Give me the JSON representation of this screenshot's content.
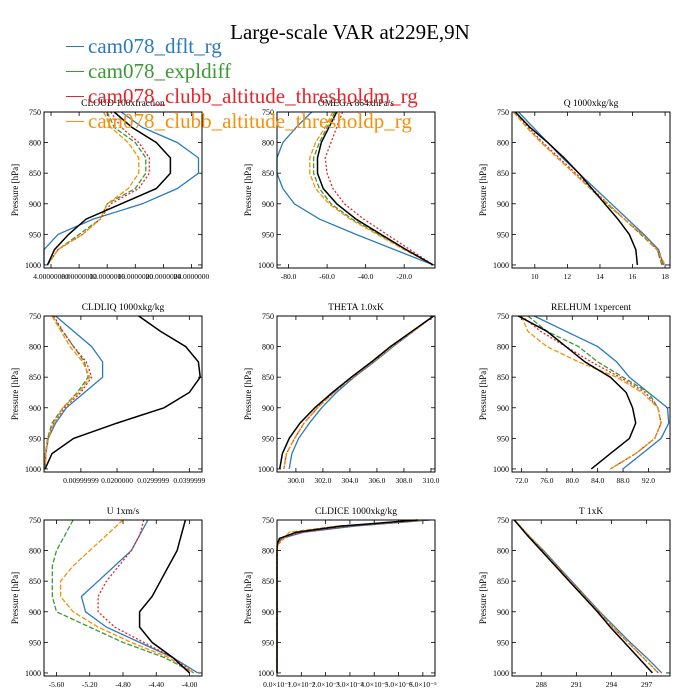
{
  "title": "Large-scale VAR at229E,9N",
  "legend": [
    {
      "label": "cam078_dflt_rg",
      "color": "#2b7bba"
    },
    {
      "label": "cam078_expldiff",
      "color": "#3c9a34"
    },
    {
      "label": "cam078_clubb_altitude_thresholdm_rg",
      "color": "#e3262b"
    },
    {
      "label": "cam078_clubb_altitude_thresholdp_rg",
      "color": "#f7900a"
    }
  ],
  "chart_data": [
    {
      "type": "line",
      "title": "CLOUD  100xfraction",
      "ylabel": "Pressure [hPa]",
      "ylim": [
        750,
        1005
      ],
      "yticks": [
        750,
        800,
        850,
        900,
        950,
        1000
      ],
      "xlim": [
        3.0,
        25.5
      ],
      "xticks": [
        4,
        8,
        12,
        16,
        20,
        24
      ],
      "xtick_labels": [
        "4.00000000",
        "8.00000000",
        "12.0000000",
        "16.0000000",
        "20.0000000",
        "24.0000000"
      ],
      "y": [
        750,
        775,
        800,
        825,
        850,
        875,
        900,
        925,
        950,
        975,
        1000
      ],
      "series": [
        {
          "name": "cam078_dflt_rg",
          "values": [
            14,
            17,
            22,
            25,
            25,
            22,
            17,
            10,
            5,
            3,
            3
          ]
        },
        {
          "name": "cam078_expldiff",
          "values": [
            12,
            13,
            16,
            17.5,
            17.5,
            16,
            12,
            11,
            8,
            5,
            3.5
          ]
        },
        {
          "name": "cam078_clubb_altitude_thresholdm_rg",
          "values": [
            12.5,
            14,
            16.5,
            18,
            18,
            16.5,
            12.5,
            11,
            8.5,
            5,
            3.5
          ]
        },
        {
          "name": "cam078_clubb_altitude_thresholdp_rg",
          "values": [
            11.5,
            12.5,
            15,
            16.5,
            16.5,
            15,
            12,
            11,
            8.5,
            5,
            3.5
          ]
        },
        {
          "name": "",
          "values": [
            13,
            15.5,
            19,
            21,
            21,
            19,
            14,
            9,
            6.5,
            4.5,
            3.5
          ]
        }
      ]
    },
    {
      "type": "line",
      "title": "OMEGA  864xhPa/s",
      "ylabel": "Pressure [hPa]",
      "ylim": [
        750,
        1005
      ],
      "yticks": [
        750,
        800,
        850,
        900,
        950,
        1000
      ],
      "xlim": [
        -86,
        -4
      ],
      "xticks": [
        -80,
        -60,
        -40,
        -20
      ],
      "xtick_labels": [
        "-80.0",
        "-60.0",
        "-40.0",
        "-20.0"
      ],
      "y": [
        750,
        775,
        800,
        825,
        850,
        875,
        900,
        925,
        950,
        975,
        1000
      ],
      "series": [
        {
          "name": "cam078_dflt_rg",
          "values": [
            -68,
            -76,
            -83,
            -86,
            -86,
            -83,
            -77,
            -64,
            -45,
            -25,
            -5
          ]
        },
        {
          "name": "cam078_expldiff",
          "values": [
            -56,
            -60,
            -64,
            -67,
            -67,
            -64,
            -58,
            -47,
            -33,
            -19,
            -5
          ]
        },
        {
          "name": "cam078_clubb_altitude_thresholdm_rg",
          "values": [
            -52,
            -55,
            -58,
            -61,
            -60,
            -57,
            -51,
            -41,
            -29,
            -17,
            -5
          ]
        },
        {
          "name": "cam078_clubb_altitude_thresholdp_rg",
          "values": [
            -57,
            -61,
            -66,
            -69,
            -69,
            -66,
            -59,
            -48,
            -34,
            -20,
            -5
          ]
        },
        {
          "name": "",
          "values": [
            -55,
            -59,
            -63,
            -65,
            -65,
            -62,
            -55,
            -45,
            -32,
            -19,
            -5
          ]
        }
      ]
    },
    {
      "type": "line",
      "title": "Q  1000xkg/kg",
      "ylabel": "Pressure [hPa]",
      "ylim": [
        750,
        1005
      ],
      "yticks": [
        750,
        800,
        850,
        900,
        950,
        1000
      ],
      "xlim": [
        8.6,
        18.3
      ],
      "xticks": [
        10,
        12,
        14,
        16,
        18
      ],
      "xtick_labels": [
        "10",
        "12",
        "14",
        "16",
        "18"
      ],
      "y": [
        750,
        775,
        800,
        825,
        850,
        875,
        900,
        925,
        950,
        975,
        1000
      ],
      "series": [
        {
          "name": "cam078_dflt_rg",
          "values": [
            9,
            9.9,
            10.8,
            11.7,
            12.7,
            13.7,
            14.7,
            15.7,
            16.7,
            17.6,
            17.9
          ]
        },
        {
          "name": "cam078_expldiff",
          "values": [
            8.7,
            9.5,
            10.4,
            11.4,
            12.4,
            13.4,
            14.4,
            15.5,
            16.5,
            17.5,
            17.8
          ]
        },
        {
          "name": "cam078_clubb_altitude_thresholdm_rg",
          "values": [
            8.8,
            9.6,
            10.5,
            11.5,
            12.5,
            13.5,
            14.5,
            15.5,
            16.6,
            17.5,
            17.9
          ]
        },
        {
          "name": "cam078_clubb_altitude_thresholdp_rg",
          "values": [
            8.7,
            9.5,
            10.4,
            11.4,
            12.4,
            13.4,
            14.5,
            15.5,
            16.6,
            17.5,
            18
          ]
        },
        {
          "name": "",
          "values": [
            8.8,
            9.7,
            10.8,
            11.8,
            12.7,
            13.5,
            14.3,
            15.1,
            15.8,
            16.2,
            16.3
          ]
        }
      ]
    },
    {
      "type": "line",
      "title": "CLDLIQ  1000xkg/kg",
      "ylabel": "Pressure [hPa]",
      "ylim": [
        750,
        1005
      ],
      "yticks": [
        750,
        800,
        850,
        900,
        950,
        1000
      ],
      "xlim": [
        -0.0002,
        0.0435
      ],
      "xticks": [
        0.01,
        0.02,
        0.03,
        0.04
      ],
      "xtick_labels": [
        "0.00999999",
        "0.0200000",
        "0.0299999",
        "0.0399999"
      ],
      "y": [
        750,
        775,
        800,
        825,
        850,
        875,
        900,
        925,
        950,
        975,
        1000
      ],
      "series": [
        {
          "name": "cam078_dflt_rg",
          "values": [
            0.003,
            0.008,
            0.013,
            0.016,
            0.016,
            0.011,
            0.006,
            0.003,
            0.001,
            0.0003,
            0.0001
          ]
        },
        {
          "name": "cam078_expldiff",
          "values": [
            0.002,
            0.005,
            0.008,
            0.011,
            0.012,
            0.009,
            0.005,
            0.002,
            0.0008,
            0.0002,
            0.0001
          ]
        },
        {
          "name": "cam078_clubb_altitude_thresholdm_rg",
          "values": [
            0.0025,
            0.005,
            0.008,
            0.0115,
            0.013,
            0.01,
            0.0055,
            0.0025,
            0.001,
            0.0003,
            0.0001
          ]
        },
        {
          "name": "cam078_clubb_altitude_thresholdp_rg",
          "values": [
            0.002,
            0.0045,
            0.007,
            0.0105,
            0.0125,
            0.0095,
            0.005,
            0.0025,
            0.001,
            0.0003,
            0.0001
          ]
        },
        {
          "name": "",
          "values": [
            0.026,
            0.032,
            0.039,
            0.0425,
            0.043,
            0.04,
            0.033,
            0.02,
            0.008,
            0.002,
            0.0001
          ]
        }
      ]
    },
    {
      "type": "line",
      "title": "THETA  1.0xK",
      "ylabel": "Pressure [hPa]",
      "ylim": [
        750,
        1005
      ],
      "yticks": [
        750,
        800,
        850,
        900,
        950,
        1000
      ],
      "xlim": [
        298.6,
        310.3
      ],
      "xticks": [
        300,
        302,
        304,
        306,
        308,
        310
      ],
      "xtick_labels": [
        "300.0",
        "302.0",
        "304.0",
        "306.0",
        "308.0",
        "310.0"
      ],
      "y": [
        750,
        775,
        800,
        825,
        850,
        875,
        900,
        925,
        950,
        975,
        1000
      ],
      "series": [
        {
          "name": "cam078_dflt_rg",
          "values": [
            310.2,
            308.7,
            307.2,
            305.8,
            304.3,
            303,
            301.9,
            301,
            300.2,
            299.7,
            299.5
          ]
        },
        {
          "name": "cam078_expldiff",
          "values": [
            310.2,
            308.6,
            307.1,
            305.7,
            304.1,
            302.8,
            301.6,
            300.6,
            299.9,
            299.3,
            299.1
          ]
        },
        {
          "name": "cam078_clubb_altitude_thresholdm_rg",
          "values": [
            310.2,
            308.6,
            307.1,
            305.7,
            304.2,
            302.8,
            301.6,
            300.6,
            299.9,
            299.3,
            299.1
          ]
        },
        {
          "name": "cam078_clubb_altitude_thresholdp_rg",
          "values": [
            310.2,
            308.7,
            307.1,
            305.7,
            304.2,
            302.8,
            301.6,
            300.6,
            299.9,
            299.3,
            299.1
          ]
        },
        {
          "name": "",
          "values": [
            310.2,
            308.6,
            307,
            305.6,
            304.1,
            302.7,
            301.4,
            300.3,
            299.5,
            299,
            298.8
          ]
        }
      ]
    },
    {
      "type": "line",
      "title": "RELHUM  1xpercent",
      "ylabel": "Pressure [hPa]",
      "ylim": [
        750,
        1005
      ],
      "yticks": [
        750,
        800,
        850,
        900,
        950,
        1000
      ],
      "xlim": [
        70.5,
        95.4
      ],
      "xticks": [
        72,
        76,
        80,
        84,
        88,
        92
      ],
      "xtick_labels": [
        "72.0",
        "76.0",
        "80.0",
        "84.0",
        "88.0",
        "92.0"
      ],
      "y": [
        750,
        775,
        800,
        825,
        850,
        875,
        900,
        925,
        950,
        975,
        1000
      ],
      "series": [
        {
          "name": "cam078_dflt_rg",
          "values": [
            74,
            79,
            84,
            87,
            89,
            92,
            95,
            95.2,
            94,
            91,
            88
          ]
        },
        {
          "name": "cam078_expldiff",
          "values": [
            73,
            76,
            81,
            84,
            88,
            92,
            93.5,
            94,
            93,
            90,
            86
          ]
        },
        {
          "name": "cam078_clubb_altitude_thresholdm_rg",
          "values": [
            72,
            75,
            79,
            83,
            87.5,
            91.5,
            93.5,
            94,
            93,
            90,
            86
          ]
        },
        {
          "name": "cam078_clubb_altitude_thresholdp_rg",
          "values": [
            72,
            73,
            76,
            81,
            87,
            91,
            93.5,
            94,
            93,
            90,
            86
          ]
        },
        {
          "name": "",
          "values": [
            71.5,
            76,
            79,
            82,
            86,
            88.5,
            89.5,
            90,
            89,
            86,
            83
          ]
        }
      ]
    },
    {
      "type": "line",
      "title": "U  1xm/s",
      "ylabel": "Pressure [hPa]",
      "ylim": [
        750,
        1005
      ],
      "yticks": [
        750,
        800,
        850,
        900,
        950,
        1000
      ],
      "xlim": [
        -5.75,
        -3.85
      ],
      "xticks": [
        -5.6,
        -5.2,
        -4.8,
        -4.4,
        -4.0
      ],
      "xtick_labels": [
        "-5.60",
        "-5.20",
        "-4.80",
        "-4.40",
        "-4.00"
      ],
      "y": [
        750,
        775,
        800,
        825,
        850,
        875,
        900,
        925,
        950,
        975,
        1000
      ],
      "series": [
        {
          "name": "cam078_dflt_rg",
          "values": [
            -4.5,
            -4.6,
            -4.7,
            -4.9,
            -5.1,
            -5.3,
            -5.25,
            -5,
            -4.6,
            -4.2,
            -3.9
          ]
        },
        {
          "name": "cam078_expldiff",
          "values": [
            -5.4,
            -5.5,
            -5.6,
            -5.65,
            -5.65,
            -5.65,
            -5.6,
            -5.2,
            -4.8,
            -4.3,
            -3.95
          ]
        },
        {
          "name": "cam078_clubb_altitude_thresholdm_rg",
          "values": [
            -4.55,
            -4.6,
            -4.7,
            -4.85,
            -5,
            -5.1,
            -5.1,
            -4.9,
            -4.55,
            -4.2,
            -3.95
          ]
        },
        {
          "name": "cam078_clubb_altitude_thresholdp_rg",
          "values": [
            -4.8,
            -5,
            -5.2,
            -5.4,
            -5.55,
            -5.55,
            -5.4,
            -5.1,
            -4.7,
            -4.25,
            -3.95
          ]
        },
        {
          "name": "",
          "values": [
            -4.05,
            -4.1,
            -4.15,
            -4.25,
            -4.35,
            -4.45,
            -4.6,
            -4.6,
            -4.45,
            -4.2,
            -4.0
          ]
        }
      ]
    },
    {
      "type": "line",
      "title": "CLDICE  1000xkg/kg",
      "ylabel": "Pressure [hPa]",
      "ylim": [
        750,
        1005
      ],
      "yticks": [
        750,
        800,
        850,
        900,
        950,
        1000
      ],
      "xlim": [
        0,
        6.5
      ],
      "xticks": [
        0,
        1,
        2,
        3,
        4,
        5,
        6
      ],
      "xtick_labels": [
        "0.0×10⁻⁵",
        "1.0×10⁻⁵",
        "2.0×10⁻⁵",
        "3.0×10⁻⁵",
        "4.0×10⁻⁵",
        "5.0×10⁻⁵",
        "6.0×10⁻⁵"
      ],
      "y": [
        750,
        760,
        770,
        780,
        790,
        800,
        850,
        900,
        950,
        1000
      ],
      "series": [
        {
          "name": "cam078_dflt_rg",
          "values": [
            6.3,
            3.2,
            1.1,
            0.2,
            0.03,
            0,
            0,
            0,
            0,
            0
          ]
        },
        {
          "name": "cam078_expldiff",
          "values": [
            6.1,
            2.8,
            0.9,
            0.15,
            0.02,
            0,
            0,
            0,
            0,
            0
          ]
        },
        {
          "name": "cam078_clubb_altitude_thresholdm_rg",
          "values": [
            6.2,
            3,
            1,
            0.2,
            0.03,
            0,
            0,
            0,
            0,
            0
          ]
        },
        {
          "name": "cam078_clubb_altitude_thresholdp_rg",
          "values": [
            6.0,
            2.5,
            0.5,
            0.3,
            0.05,
            0,
            0,
            0,
            0,
            0
          ]
        },
        {
          "name": "",
          "values": [
            5.8,
            2.6,
            0.8,
            0.1,
            0.01,
            0,
            0,
            0,
            0,
            0
          ]
        }
      ]
    },
    {
      "type": "line",
      "title": "T  1xK",
      "ylabel": "Pressure [hPa]",
      "ylim": [
        750,
        1005
      ],
      "yticks": [
        750,
        800,
        850,
        900,
        950,
        1000
      ],
      "xlim": [
        285.5,
        299
      ],
      "xticks": [
        288,
        291,
        294,
        297
      ],
      "xtick_labels": [
        "288",
        "291",
        "294",
        "297"
      ],
      "y": [
        750,
        775,
        800,
        825,
        850,
        875,
        900,
        925,
        950,
        975,
        1000
      ],
      "series": [
        {
          "name": "cam078_dflt_rg",
          "values": [
            285.7,
            286.9,
            288.2,
            289.4,
            290.6,
            291.8,
            293,
            294.3,
            295.6,
            297,
            298.3
          ]
        },
        {
          "name": "cam078_expldiff",
          "values": [
            285.7,
            286.9,
            288.1,
            289.3,
            290.5,
            291.7,
            292.9,
            294.1,
            295.4,
            296.7,
            298
          ]
        },
        {
          "name": "cam078_clubb_altitude_thresholdm_rg",
          "values": [
            285.7,
            286.9,
            288.1,
            289.3,
            290.5,
            291.7,
            292.9,
            294.1,
            295.4,
            296.7,
            298
          ]
        },
        {
          "name": "cam078_clubb_altitude_thresholdp_rg",
          "values": [
            285.7,
            286.9,
            288.1,
            289.3,
            290.5,
            291.7,
            292.9,
            294.1,
            295.4,
            296.7,
            298
          ]
        },
        {
          "name": "",
          "values": [
            285.7,
            286.8,
            288,
            289.2,
            290.4,
            291.6,
            292.8,
            293.9,
            295.1,
            296.3,
            297.5
          ]
        }
      ]
    }
  ]
}
